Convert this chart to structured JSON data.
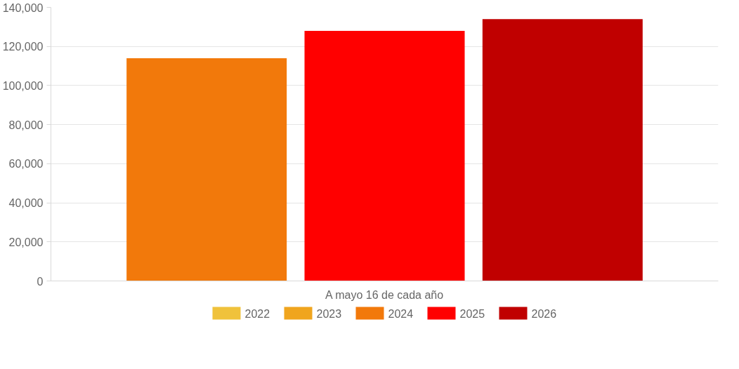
{
  "chart_data": {
    "type": "bar",
    "categories": [
      "A mayo 16 de cada año"
    ],
    "series": [
      {
        "name": "2022",
        "color": "#f0c23b",
        "values": [
          null
        ]
      },
      {
        "name": "2023",
        "color": "#f0a51e",
        "values": [
          null
        ]
      },
      {
        "name": "2024",
        "color": "#f2790b",
        "values": [
          114000
        ]
      },
      {
        "name": "2025",
        "color": "#ff0000",
        "values": [
          128000
        ]
      },
      {
        "name": "2026",
        "color": "#c00000",
        "values": [
          134000
        ]
      }
    ],
    "ylim": [
      0,
      140000
    ],
    "yticks": [
      {
        "value": 0,
        "label": "0"
      },
      {
        "value": 20000,
        "label": "20,000"
      },
      {
        "value": 40000,
        "label": "40,000"
      },
      {
        "value": 60000,
        "label": "60,000"
      },
      {
        "value": 80000,
        "label": "80,000"
      },
      {
        "value": 100000,
        "label": "100,000"
      },
      {
        "value": 120000,
        "label": "120,000"
      },
      {
        "value": 140000,
        "label": "140,000"
      }
    ],
    "grid": true,
    "legend": "bottom"
  }
}
